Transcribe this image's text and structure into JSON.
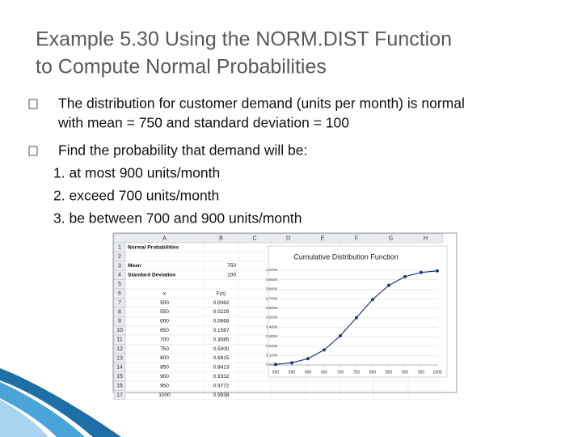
{
  "title": [
    "Example 5.30 Using the NORM.DIST Function",
    "to Compute Normal Probabilities"
  ],
  "bullets": [
    {
      "lines": [
        "The distribution for customer demand (units per month) is normal",
        "with mean = 750 and standard deviation = 100"
      ]
    },
    {
      "lines": [
        "Find the probability that demand will be:",
        "1. at most 900 units/month",
        "2. exceed 700 units/month",
        "3. be between 700 and 900 units/month"
      ]
    }
  ],
  "spreadsheet": {
    "column_headers": [
      "A",
      "B",
      "C",
      "D",
      "E",
      "F",
      "G",
      "H"
    ],
    "row_numbers": [
      "1",
      "2",
      "3",
      "4",
      "5",
      "6",
      "7",
      "8",
      "9",
      "10",
      "11",
      "12",
      "13",
      "14",
      "15",
      "16",
      "17"
    ],
    "cells": [
      [
        "Normal Probabilities",
        null
      ],
      [
        null,
        null
      ],
      [
        "Mean",
        "750"
      ],
      [
        "Standard Deviation",
        "100"
      ],
      [
        null,
        null
      ],
      [
        "x",
        "F(x)"
      ],
      [
        "500",
        "0.0062"
      ],
      [
        "550",
        "0.0228"
      ],
      [
        "600",
        "0.0668"
      ],
      [
        "650",
        "0.1587"
      ],
      [
        "700",
        "0.3085"
      ],
      [
        "750",
        "0.5000"
      ],
      [
        "800",
        "0.6915"
      ],
      [
        "850",
        "0.8413"
      ],
      [
        "900",
        "0.9332"
      ],
      [
        "950",
        "0.9772"
      ],
      [
        "1000",
        "0.9938"
      ]
    ]
  },
  "chart": {
    "type": "line",
    "title": "Cumulative Distribution Function",
    "x": [
      500,
      550,
      600,
      650,
      700,
      750,
      800,
      850,
      900,
      950,
      1000
    ],
    "values": [
      0.0062,
      0.0228,
      0.0668,
      0.1587,
      0.3085,
      0.5,
      0.6915,
      0.8413,
      0.9332,
      0.9772,
      0.9938
    ],
    "color": "#1f3b73",
    "xlim": [
      500,
      1000
    ],
    "xticks": [
      500,
      550,
      600,
      650,
      700,
      750,
      800,
      850,
      900,
      950,
      1000
    ],
    "ylim": [
      0,
      1
    ],
    "yticks": [
      {
        "value": 0,
        "label": "0.0000"
      },
      {
        "value": 0.1,
        "label": "0.1000"
      },
      {
        "value": 0.2,
        "label": "0.2000"
      },
      {
        "value": 0.3,
        "label": "0.3000"
      },
      {
        "value": 0.4,
        "label": "0.4000"
      },
      {
        "value": 0.5,
        "label": "0.5000"
      },
      {
        "value": 0.6,
        "label": "0.6000"
      },
      {
        "value": 0.7,
        "label": "0.7000"
      },
      {
        "value": 0.8,
        "label": "0.8000"
      },
      {
        "value": 0.9,
        "label": "0.9000"
      },
      {
        "value": 1,
        "label": "1.0000"
      }
    ],
    "grid": true
  }
}
